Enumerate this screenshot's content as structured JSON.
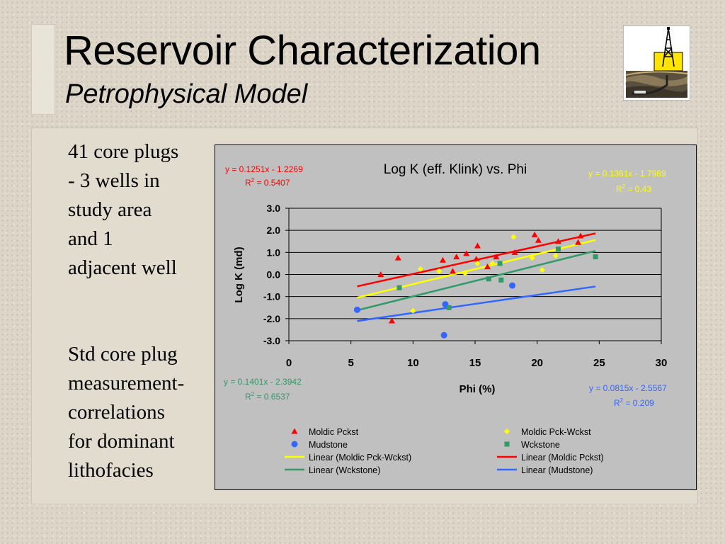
{
  "slide": {
    "title": "Reservoir Characterization",
    "subtitle": "Petrophysical Model",
    "side_text_1": [
      "41 core plugs",
      "- 3 wells in",
      "study area",
      "and 1",
      "adjacent well"
    ],
    "side_text_2": [
      "Std core plug",
      "measurement-",
      "correlations",
      "for dominant",
      "lithofacies"
    ]
  },
  "chart_data": {
    "type": "scatter",
    "title": "Log K (eff. Klink) vs. Phi",
    "xlabel": "Phi (%)",
    "ylabel": "Log K (md)",
    "xlim": [
      0,
      30
    ],
    "ylim": [
      -3,
      3
    ],
    "x_ticks": [
      "0",
      "5",
      "10",
      "15",
      "20",
      "25",
      "30"
    ],
    "y_ticks": [
      "3.0",
      "2.0",
      "1.0",
      "0.0",
      "-1.0",
      "-2.0",
      "-3.0"
    ],
    "grid": "horizontal",
    "legend_position": "bottom",
    "series": [
      {
        "name": "Moldic Pckst",
        "marker": "triangle",
        "color": "#ff0000",
        "points": [
          [
            7.4,
            0.0
          ],
          [
            8.3,
            -2.1
          ],
          [
            8.8,
            0.75
          ],
          [
            12.4,
            0.65
          ],
          [
            13.2,
            0.15
          ],
          [
            13.5,
            0.8
          ],
          [
            14.3,
            0.95
          ],
          [
            15.2,
            1.3
          ],
          [
            15.1,
            0.7
          ],
          [
            16.0,
            0.35
          ],
          [
            16.7,
            0.8
          ],
          [
            18.2,
            1.0
          ],
          [
            19.8,
            1.8
          ],
          [
            20.1,
            1.55
          ],
          [
            21.7,
            1.5
          ],
          [
            23.5,
            1.75
          ],
          [
            23.3,
            1.45
          ]
        ]
      },
      {
        "name": "Mudstone",
        "marker": "circle",
        "color": "#3366ff",
        "points": [
          [
            5.5,
            -1.6
          ],
          [
            12.6,
            -1.35
          ],
          [
            12.5,
            -2.75
          ],
          [
            18.0,
            -0.5
          ]
        ]
      },
      {
        "name": "Moldic Pck-Wckst",
        "marker": "diamond",
        "color": "#ffff00",
        "points": [
          [
            10.6,
            0.25
          ],
          [
            10.0,
            -1.65
          ],
          [
            12.1,
            0.15
          ],
          [
            14.2,
            0.05
          ],
          [
            15.2,
            0.5
          ],
          [
            16.4,
            0.5
          ],
          [
            18.1,
            1.7
          ],
          [
            19.6,
            0.75
          ],
          [
            20.4,
            0.2
          ],
          [
            21.5,
            0.85
          ]
        ]
      },
      {
        "name": "Wckstone",
        "marker": "square",
        "color": "#339966",
        "points": [
          [
            8.9,
            -0.6
          ],
          [
            12.9,
            -1.5
          ],
          [
            16.1,
            -0.2
          ],
          [
            17.1,
            -0.25
          ],
          [
            17.0,
            0.5
          ],
          [
            21.7,
            1.15
          ],
          [
            24.7,
            0.8
          ]
        ]
      }
    ],
    "trendlines": [
      {
        "name": "Linear (Moldic Pck-Wckst)",
        "color": "#ffff00",
        "slope": 0.1361,
        "intercept": -1.7989,
        "x_range": [
          5.5,
          24.7
        ],
        "equation": "y = 0.1361x - 1.7989",
        "r2_label": "R",
        "r2_value": " = 0.43"
      },
      {
        "name": "Linear (Moldic Pckst)",
        "color": "#ff0000",
        "slope": 0.1251,
        "intercept": -1.2269,
        "x_range": [
          5.5,
          24.7
        ],
        "equation": "y = 0.1251x - 1.2269",
        "r2_label": "R",
        "r2_value": " = 0.5407"
      },
      {
        "name": "Linear (Wckstone)",
        "color": "#339966",
        "slope": 0.1401,
        "intercept": -2.3942,
        "x_range": [
          5.5,
          24.7
        ],
        "equation": "y = 0.1401x - 2.3942",
        "r2_label": "R",
        "r2_value": " = 0.6537"
      },
      {
        "name": "Linear (Mudstone)",
        "color": "#3366ff",
        "slope": 0.0815,
        "intercept": -2.5567,
        "x_range": [
          5.5,
          24.7
        ],
        "equation": "y = 0.0815x - 2.5567",
        "r2_label": "R",
        "r2_value": " = 0.209"
      }
    ],
    "legend": [
      {
        "label": "Moldic Pckst",
        "kind": "triangle",
        "color": "#ff0000"
      },
      {
        "label": "Moldic Pck-Wckst",
        "kind": "diamond",
        "color": "#ffff00"
      },
      {
        "label": "Mudstone",
        "kind": "circle",
        "color": "#3366ff"
      },
      {
        "label": "Wckstone",
        "kind": "square",
        "color": "#339966"
      },
      {
        "label": "Linear (Moldic Pck-Wckst)",
        "kind": "line",
        "color": "#ffff00"
      },
      {
        "label": "Linear (Moldic Pckst)",
        "kind": "line",
        "color": "#ff0000"
      },
      {
        "label": "Linear (Wckstone)",
        "kind": "line",
        "color": "#339966"
      },
      {
        "label": "Linear (Mudstone)",
        "kind": "line",
        "color": "#3366ff"
      }
    ]
  }
}
